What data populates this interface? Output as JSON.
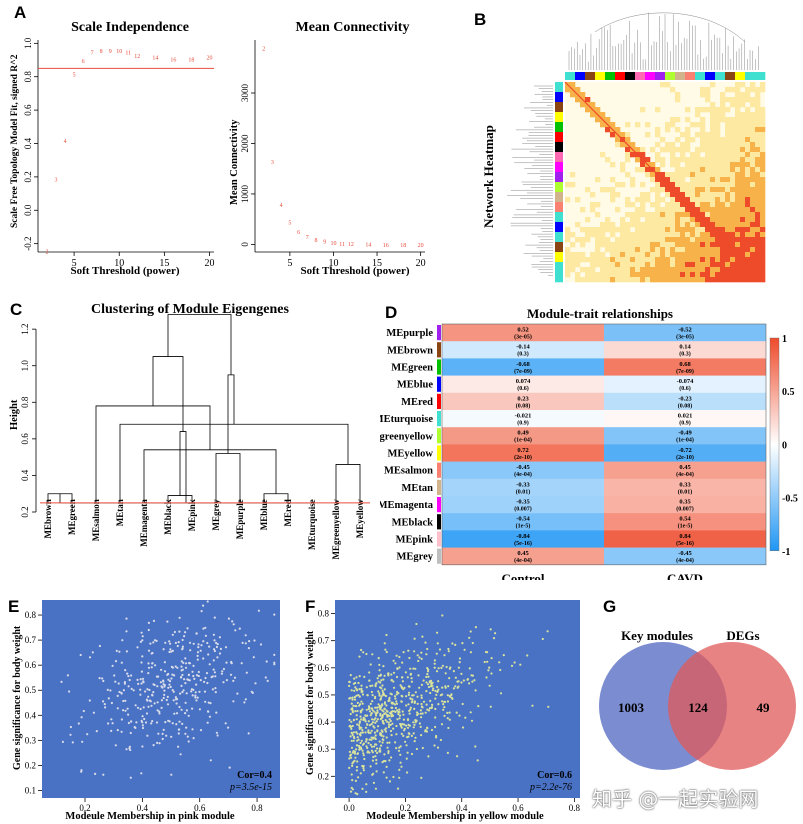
{
  "panel_letters": {
    "a": "A",
    "b": "B",
    "c": "C",
    "d": "D",
    "e": "E",
    "f": "F",
    "g": "G"
  },
  "colors": {
    "red": "#e74c3c",
    "blue_bg": "#4a72c4",
    "scatter_e": "#d9dce8",
    "scatter_f": "#d9e39c",
    "venn_left": "#6478c8",
    "venn_right": "#e05a5a",
    "heat_hi": "#ee4b2b",
    "heat_lo": "#2196f3"
  },
  "icons": {
    "dendrogram": "dendrogram-icon",
    "heatmap": "network-heatmap-icon"
  },
  "watermark": "知乎 @一起实验网",
  "chart_data": [
    {
      "id": "scale_independence",
      "type": "scatter",
      "title": "Scale Independence",
      "xlabel": "Soft Threshold (power)",
      "ylabel": "Scale Free Topology Model Fit, signed R^2",
      "xlim": [
        1,
        20.5
      ],
      "ylim": [
        -0.25,
        1.02
      ],
      "xticks": [
        5,
        10,
        15,
        20
      ],
      "yticks": [
        -0.2,
        0.0,
        0.2,
        0.4,
        0.6,
        0.8,
        1.0
      ],
      "ytick_labels": [
        "-0.2",
        "0.0",
        "0.2",
        "0.4",
        "0.6",
        "0.8",
        "1.0"
      ],
      "hline": 0.85,
      "x": [
        2,
        3,
        4,
        5,
        6,
        7,
        8,
        9,
        10,
        11,
        12,
        14,
        16,
        18,
        20
      ],
      "y": [
        -0.24,
        0.19,
        0.42,
        0.82,
        0.9,
        0.95,
        0.96,
        0.96,
        0.96,
        0.95,
        0.93,
        0.92,
        0.91,
        0.91,
        0.92
      ],
      "labels": [
        "2",
        "3",
        "4",
        "5",
        "6",
        "7",
        "8",
        "9",
        "10",
        "11",
        "12",
        "14",
        "16",
        "18",
        "20"
      ]
    },
    {
      "id": "mean_connectivity",
      "type": "scatter",
      "title": "Mean Connectivity",
      "xlabel": "Soft Threshold (power)",
      "ylabel": "Mean Connectivity",
      "xlim": [
        1,
        20.5
      ],
      "ylim": [
        -150,
        4050
      ],
      "xticks": [
        5,
        10,
        15,
        20
      ],
      "yticks": [
        0,
        1000,
        2000,
        3000
      ],
      "ytick_labels": [
        "0",
        "1000",
        "2000",
        "3000"
      ],
      "x": [
        2,
        3,
        4,
        5,
        6,
        7,
        8,
        9,
        10,
        11,
        12,
        14,
        16,
        18,
        20
      ],
      "y": [
        3900,
        1650,
        800,
        450,
        270,
        170,
        110,
        75,
        50,
        30,
        25,
        15,
        10,
        8,
        5
      ],
      "labels": [
        "2",
        "3",
        "4",
        "5",
        "6",
        "7",
        "8",
        "9",
        "10",
        "11",
        "12",
        "14",
        "16",
        "18",
        "20"
      ]
    },
    {
      "id": "network_heatmap",
      "type": "heatmap",
      "title": "Network Heatmap",
      "color_scale": [
        "#fffbe6",
        "#fde9a2",
        "#f8b24a",
        "#ee4b2b"
      ]
    },
    {
      "id": "module_clustering",
      "type": "dendrogram",
      "title": "Clustering of Module Eigengenes",
      "ylabel": "Height",
      "ylim": [
        0.2,
        1.25
      ],
      "yticks": [
        0.2,
        0.4,
        0.6,
        0.8,
        1.0,
        1.2
      ],
      "ytick_labels": [
        "0.2",
        "0.4",
        "0.6",
        "0.8",
        "1.0",
        "1.2"
      ],
      "cut_height": 0.25,
      "leaves": [
        "MEbrown",
        "MEgreen",
        "MEsalmon",
        "MEtan",
        "MEmagenta",
        "MEblack",
        "MEpink",
        "MEgrey",
        "MEpurple",
        "MEblue",
        "MEred",
        "MEturquoise",
        "MEgreenyellow",
        "MEyellow"
      ],
      "merges": [
        [
          0,
          1,
          0.3
        ],
        [
          9,
          10,
          0.3
        ],
        [
          5,
          6,
          0.29
        ],
        [
          11,
          14,
          0.25
        ],
        [
          12,
          13,
          0.46
        ],
        [
          4,
          15,
          0.54
        ],
        [
          3,
          18,
          0.68
        ],
        [
          7,
          8,
          0.52
        ],
        [
          2,
          19,
          0.78
        ],
        [
          16,
          17,
          0.64
        ],
        [
          20,
          21,
          0.95
        ],
        [
          22,
          23,
          1.05
        ],
        [
          24,
          25,
          1.28
        ]
      ]
    },
    {
      "id": "module_trait",
      "type": "heatmap",
      "title": "Module-trait relationships",
      "columns": [
        "Control",
        "CAVD"
      ],
      "colorbar_ticks": [
        "1",
        "0.5",
        "0",
        "-0.5",
        "-1"
      ],
      "rows": [
        {
          "name": "MEpurple",
          "color": "#a020f0",
          "values": [
            0.52,
            -0.52
          ],
          "pvals": [
            "(3e-05)",
            "(3e-05)"
          ]
        },
        {
          "name": "MEbrown",
          "color": "#8b4513",
          "values": [
            -0.14,
            0.14
          ],
          "pvals": [
            "(0.3)",
            "(0.3)"
          ]
        },
        {
          "name": "MEgreen",
          "color": "#00c000",
          "values": [
            -0.68,
            0.68
          ],
          "pvals": [
            "(7e-09)",
            "(7e-09)"
          ]
        },
        {
          "name": "MEblue",
          "color": "#0000ff",
          "values": [
            0.074,
            -0.074
          ],
          "pvals": [
            "(0.6)",
            "(0.6)"
          ]
        },
        {
          "name": "MEred",
          "color": "#ff0000",
          "values": [
            0.23,
            -0.23
          ],
          "pvals": [
            "(0.08)",
            "(0.08)"
          ]
        },
        {
          "name": "MEturquoise",
          "color": "#40e0d0",
          "values": [
            -0.021,
            0.021
          ],
          "pvals": [
            "(0.9)",
            "(0.9)"
          ]
        },
        {
          "name": "MEgreenyellow",
          "color": "#adff2f",
          "values": [
            0.49,
            -0.49
          ],
          "pvals": [
            "(1e-04)",
            "(1e-04)"
          ]
        },
        {
          "name": "MEyellow",
          "color": "#ffff00",
          "values": [
            0.72,
            -0.72
          ],
          "pvals": [
            "(2e-10)",
            "(2e-10)"
          ]
        },
        {
          "name": "MEsalmon",
          "color": "#fa8072",
          "values": [
            -0.45,
            0.45
          ],
          "pvals": [
            "(4e-04)",
            "(4e-04)"
          ]
        },
        {
          "name": "MEtan",
          "color": "#d2b48c",
          "values": [
            -0.33,
            0.33
          ],
          "pvals": [
            "(0.01)",
            "(0.01)"
          ]
        },
        {
          "name": "MEmagenta",
          "color": "#ff00ff",
          "values": [
            -0.35,
            0.35
          ],
          "pvals": [
            "(0.007)",
            "(0.007)"
          ]
        },
        {
          "name": "MEblack",
          "color": "#000000",
          "values": [
            -0.54,
            0.54
          ],
          "pvals": [
            "(1e-5)",
            "(1e-5)"
          ]
        },
        {
          "name": "MEpink",
          "color": "#ffc0cb",
          "values": [
            -0.84,
            0.84
          ],
          "pvals": [
            "(5e-16)",
            "(5e-16)"
          ]
        },
        {
          "name": "MEgrey",
          "color": "#bebebe",
          "values": [
            0.45,
            -0.45
          ],
          "pvals": [
            "(4e-04)",
            "(4e-04)"
          ]
        }
      ]
    },
    {
      "id": "pink_module_scatter",
      "type": "scatter",
      "xlabel": "Modeule Membership in pink module",
      "ylabel": "Gene significance for body weight",
      "xlim": [
        0.05,
        0.88
      ],
      "ylim": [
        0.07,
        0.86
      ],
      "xticks": [
        0.2,
        0.4,
        0.6,
        0.8
      ],
      "xtick_labels": [
        "0.2",
        "0.4",
        "0.6",
        "0.8"
      ],
      "yticks": [
        0.1,
        0.2,
        0.3,
        0.4,
        0.5,
        0.6,
        0.7,
        0.8
      ],
      "ytick_labels": [
        "0.1",
        "0.2",
        "0.3",
        "0.4",
        "0.5",
        "0.6",
        "0.7",
        "0.8"
      ],
      "cor_label": "Cor=0.4",
      "p_label": "p=3.5e-15",
      "n_points": 420,
      "cor": 0.4
    },
    {
      "id": "yellow_module_scatter",
      "type": "scatter",
      "xlabel": "Modeule Membership in yellow module",
      "ylabel": "Gene significance for body weight",
      "xlim": [
        -0.05,
        0.82
      ],
      "ylim": [
        0.12,
        0.85
      ],
      "xticks": [
        0.0,
        0.2,
        0.4,
        0.6,
        0.8
      ],
      "xtick_labels": [
        "0.0",
        "0.2",
        "0.4",
        "0.6",
        "0.8"
      ],
      "yticks": [
        0.2,
        0.3,
        0.4,
        0.5,
        0.6,
        0.7,
        0.8
      ],
      "ytick_labels": [
        "0.2",
        "0.3",
        "0.4",
        "0.5",
        "0.6",
        "0.7",
        "0.8"
      ],
      "cor_label": "Cor=0.6",
      "p_label": "p=2.2e-76",
      "n_points": 750,
      "cor": 0.6
    },
    {
      "id": "venn",
      "type": "venn",
      "sets": [
        {
          "name": "Key modules",
          "only": "1003"
        },
        {
          "name": "DEGs",
          "only": "49"
        }
      ],
      "overlap": "124"
    }
  ]
}
